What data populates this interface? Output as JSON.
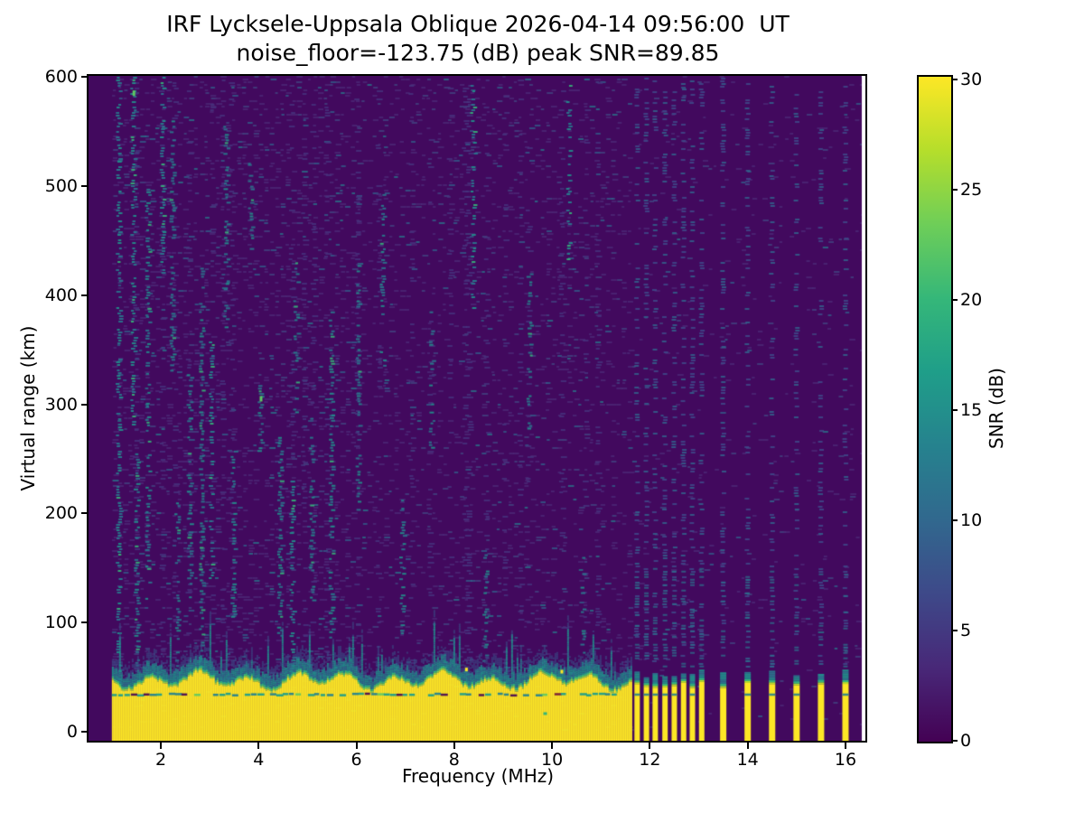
{
  "header": {
    "title_line1": "IRF Lycksele-Uppsala Oblique 2026-04-14 09:56:00  UT",
    "title_line2": "noise_floor=-123.75 (dB) peak SNR=89.85"
  },
  "chart_data": {
    "type": "heatmap",
    "title": "IRF Lycksele-Uppsala Oblique 2026-04-14 09:56:00  UT",
    "subtitle": "noise_floor=-123.75 (dB) peak SNR=89.85",
    "xlabel": "Frequency (MHz)",
    "ylabel": "Virtual range (km)",
    "colorbar_label": "SNR (dB)",
    "x_ticks": [
      2,
      4,
      6,
      8,
      10,
      12,
      14,
      16
    ],
    "y_ticks": [
      0,
      100,
      200,
      300,
      400,
      500,
      600
    ],
    "colorbar_ticks": [
      0,
      5,
      10,
      15,
      20,
      25,
      30
    ],
    "x_range_mhz": [
      0.52,
      16.42
    ],
    "y_range_km": [
      -8,
      600
    ],
    "snr_range_db": [
      0,
      30
    ],
    "noise_floor_db": -123.75,
    "peak_snr_db": 89.85,
    "sweep_start_mhz": 1.0,
    "continuous_band_end_mhz": 11.61,
    "ground_band_top_km": 46,
    "band_dark_line_km": 35,
    "stripe_freqs_mhz": [
      11.74,
      11.93,
      12.11,
      12.31,
      12.5,
      12.69,
      12.87,
      13.06,
      13.5,
      14.0,
      14.5,
      15.0,
      15.5,
      16.0
    ],
    "noise_streaks": [
      {
        "f": 1.15,
        "km": [
          40,
          600
        ],
        "s": 0.85
      },
      {
        "f": 1.45,
        "km": [
          280,
          600
        ],
        "s": 1.0
      },
      {
        "f": 1.52,
        "km": [
          60,
          260
        ],
        "s": 0.8
      },
      {
        "f": 1.75,
        "km": [
          120,
          500
        ],
        "s": 0.7
      },
      {
        "f": 2.05,
        "km": [
          420,
          600
        ],
        "s": 0.7
      },
      {
        "f": 2.25,
        "km": [
          330,
          560
        ],
        "s": 0.85
      },
      {
        "f": 2.35,
        "km": [
          60,
          210
        ],
        "s": 0.7
      },
      {
        "f": 2.6,
        "km": [
          120,
          330
        ],
        "s": 0.75
      },
      {
        "f": 2.85,
        "km": [
          60,
          430
        ],
        "s": 0.95
      },
      {
        "f": 3.05,
        "km": [
          140,
          360
        ],
        "s": 0.7
      },
      {
        "f": 3.35,
        "km": [
          370,
          560
        ],
        "s": 0.8
      },
      {
        "f": 3.5,
        "km": [
          90,
          260
        ],
        "s": 0.7
      },
      {
        "f": 3.85,
        "km": [
          440,
          530
        ],
        "s": 0.65
      },
      {
        "f": 4.05,
        "km": [
          250,
          330
        ],
        "s": 0.9
      },
      {
        "f": 4.45,
        "km": [
          80,
          270
        ],
        "s": 0.95
      },
      {
        "f": 4.7,
        "km": [
          55,
          230
        ],
        "s": 1.0
      },
      {
        "f": 4.78,
        "km": [
          290,
          430
        ],
        "s": 0.7
      },
      {
        "f": 5.1,
        "km": [
          120,
          290
        ],
        "s": 0.7
      },
      {
        "f": 5.5,
        "km": [
          80,
          390
        ],
        "s": 0.75
      },
      {
        "f": 6.05,
        "km": [
          200,
          430
        ],
        "s": 0.55
      },
      {
        "f": 6.55,
        "km": [
          330,
          500
        ],
        "s": 0.5
      },
      {
        "f": 6.95,
        "km": [
          90,
          220
        ],
        "s": 0.55
      },
      {
        "f": 7.55,
        "km": [
          260,
          400
        ],
        "s": 0.5
      },
      {
        "f": 8.4,
        "km": [
          380,
          600
        ],
        "s": 0.55
      },
      {
        "f": 8.65,
        "km": [
          60,
          170
        ],
        "s": 0.5
      },
      {
        "f": 9.55,
        "km": [
          250,
          420
        ],
        "s": 0.45
      },
      {
        "f": 10.35,
        "km": [
          430,
          600
        ],
        "s": 0.5
      },
      {
        "f": 10.65,
        "km": [
          60,
          170
        ],
        "s": 0.5
      }
    ],
    "artifacts": [
      {
        "f": 9.86,
        "km": 17,
        "type": "teal-dash"
      },
      {
        "f": 8.25,
        "km": 57,
        "type": "yellow-blip"
      },
      {
        "f": 10.2,
        "km": 55,
        "type": "yellow-blip"
      },
      {
        "f": 4.05,
        "km": 305,
        "type": "green-blip"
      },
      {
        "f": 1.45,
        "km": 585,
        "type": "green-blip"
      }
    ],
    "colormap": {
      "name": "viridis",
      "stops": [
        "#440154",
        "#482878",
        "#3e4989",
        "#31688e",
        "#26828e",
        "#1f9e89",
        "#35b779",
        "#6ece58",
        "#b5de2b",
        "#fde725"
      ]
    },
    "colors": {
      "background": "#42095e",
      "band_yellow": "#fde725",
      "fringe_green": "#8bd646",
      "fringe_green2": "#35b779",
      "fringe_teal": "#21918c",
      "fringe_teal2": "#2a788e",
      "faint_dash": "#4c2a78",
      "faint_slate": "#3e4989",
      "gap_white": "#ffffff"
    },
    "legend_position": "right-colorbar",
    "grid": false
  }
}
